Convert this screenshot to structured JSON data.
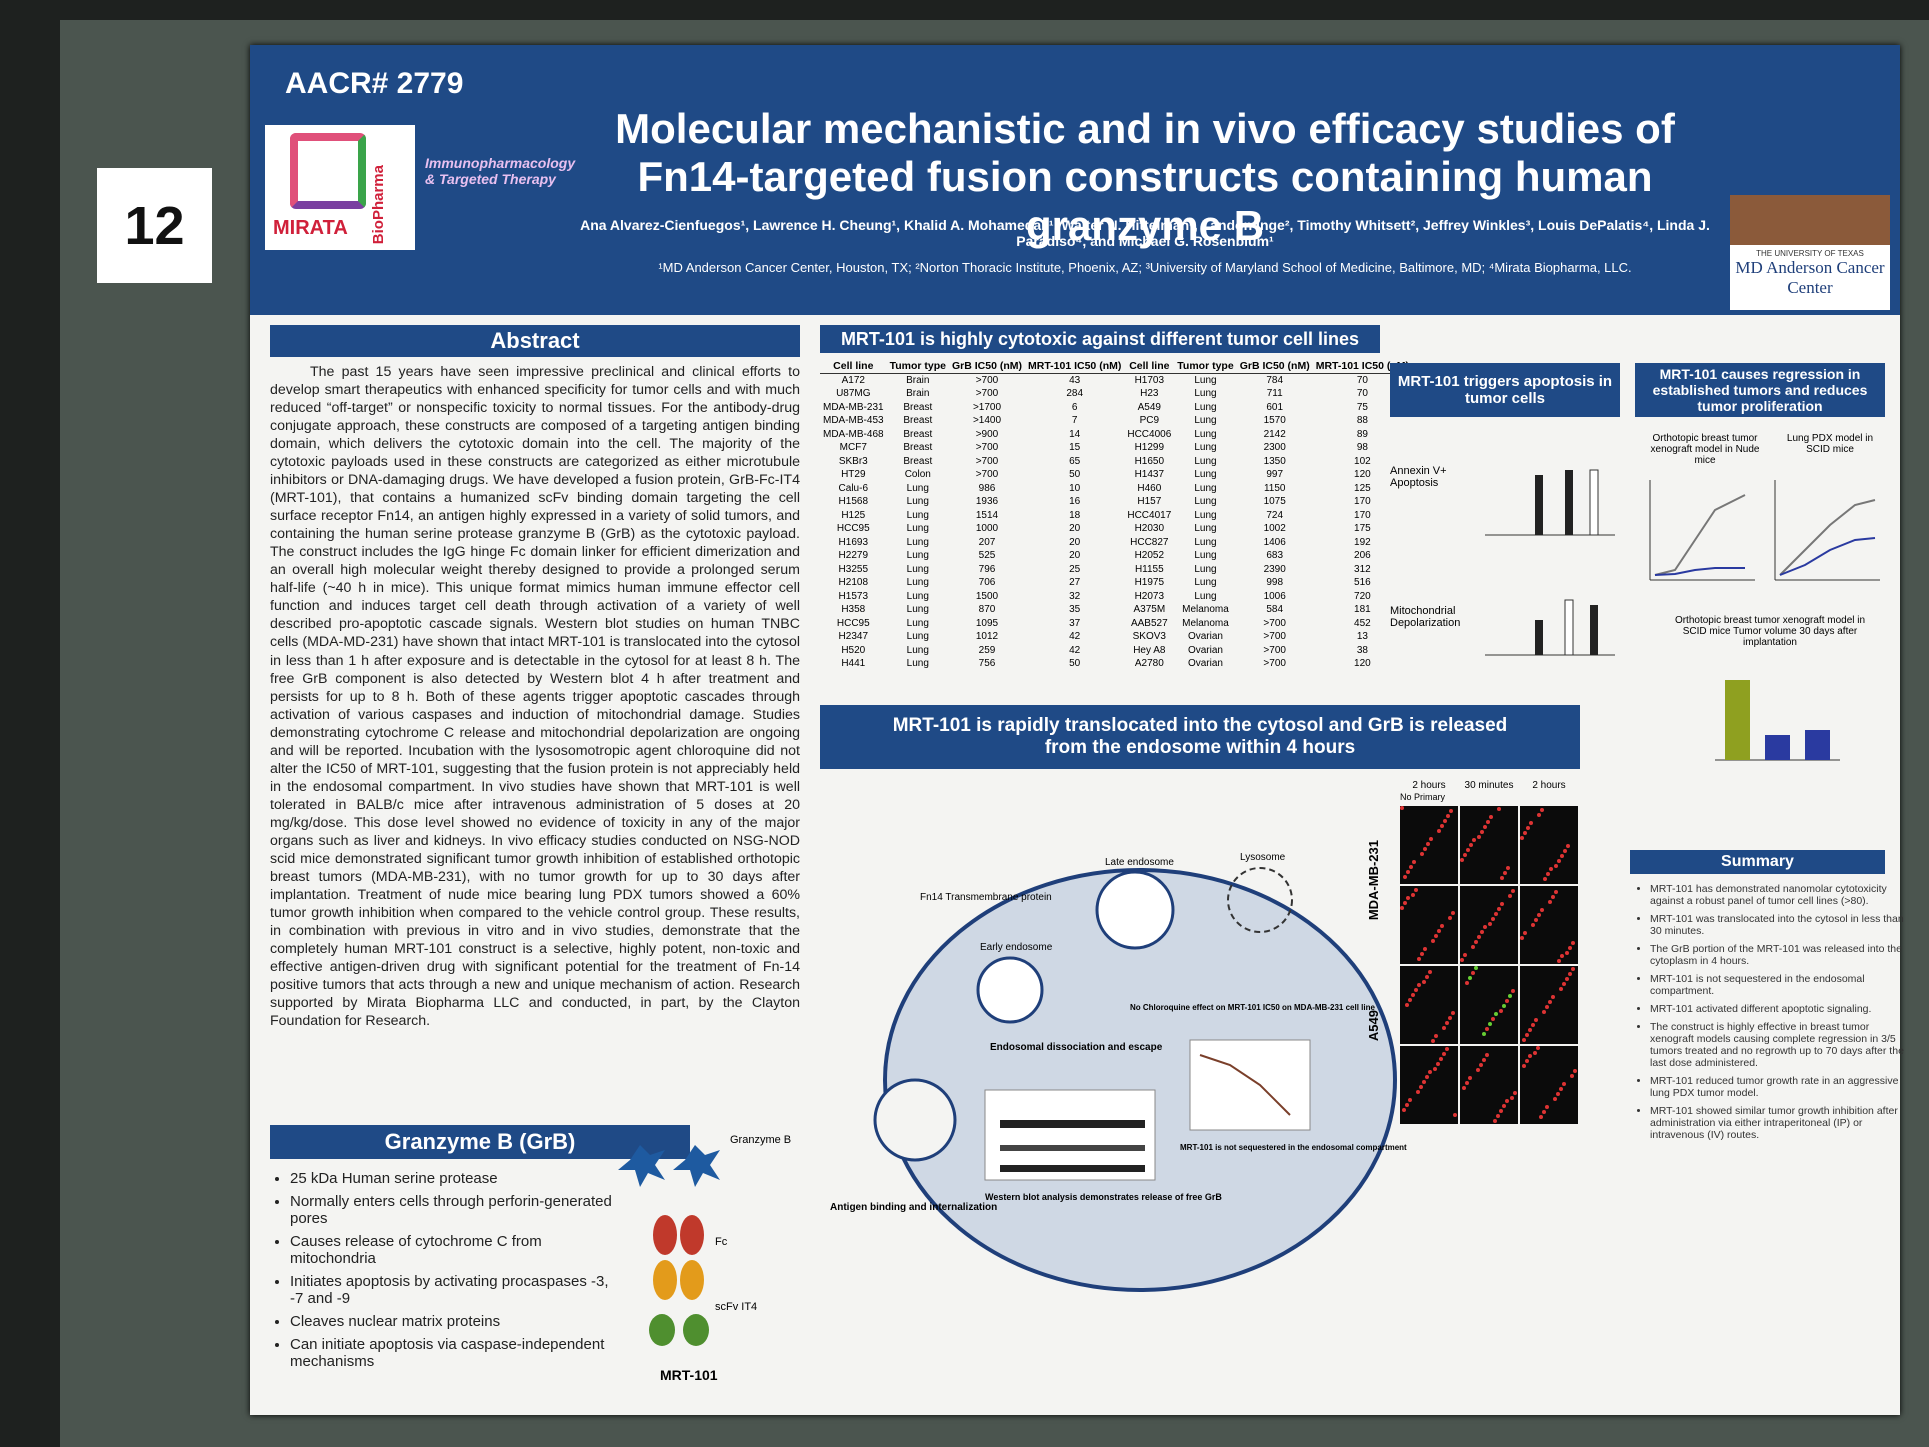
{
  "board": {
    "number": "12"
  },
  "header": {
    "conference": "AACR# 2779",
    "logo_company": "MIRATA",
    "logo_company_sub": "BioPharma",
    "logo_journal": "Immunopharmacology & Targeted Therapy",
    "title": "Molecular mechanistic and in vivo efficacy studies of Fn14-targeted fusion constructs containing human granzyme B",
    "authors": "Ana Alvarez-Cienfuegos¹, Lawrence H. Cheung¹, Khalid A. Mohamedali¹, Walter N. Hittelman¹, Landon Inge², Timothy Whitsett², Jeffrey Winkles³, Louis DePalatis⁴, Linda J. Paradiso⁴, and Michael G. Rosenblum¹",
    "affiliations": "¹MD Anderson Cancer Center, Houston, TX; ²Norton Thoracic Institute, Phoenix, AZ; ³University of Maryland School of Medicine, Baltimore, MD; ⁴Mirata Biopharma, LLC.",
    "logo_institution_top": "THE UNIVERSITY OF TEXAS",
    "logo_institution": "MD Anderson Cancer Center"
  },
  "abstract": {
    "title": "Abstract",
    "text": "The past 15 years have seen impressive preclinical and clinical efforts to develop smart therapeutics with enhanced specificity for tumor cells and with much reduced “off-target” or nonspecific toxicity to normal tissues. For the antibody-drug conjugate approach, these constructs are composed of a targeting antigen binding domain, which delivers the cytotoxic domain into the cell. The majority of the cytotoxic payloads used in these constructs are categorized as either microtubule inhibitors or DNA-damaging drugs. We have developed a fusion protein, GrB-Fc-IT4 (MRT-101), that contains a humanized scFv binding domain targeting the cell surface receptor Fn14, an antigen highly expressed in a variety of solid tumors, and containing the human serine protease granzyme B (GrB) as the cytotoxic payload. The construct includes the IgG hinge Fc domain linker for efficient dimerization and an overall high molecular weight thereby designed to provide a prolonged serum half-life (~40 h in mice). This unique format mimics human immune effector cell function and induces target cell death through activation of a variety of well described pro-apoptotic cascade signals. Western blot studies on human TNBC cells (MDA-MD-231) have shown that intact MRT-101 is translocated into the cytosol in less than 1 h after exposure and is detectable in the cytosol for at least 8 h. The free GrB component is also detected by Western blot 4 h after treatment and persists for up to 8 h. Both of these agents trigger apoptotic cascades through activation of various caspases and induction of mitochondrial damage. Studies demonstrating cytochrome C release and mitochondrial depolarization are ongoing and will be reported. Incubation with the lysosomotropic agent chloroquine did not alter the IC50 of MRT-101, suggesting that the fusion protein is not appreciably held in the endosomal compartment. In vivo studies have shown that MRT-101 is well tolerated in BALB/c mice after intravenous administration of 5 doses at 20 mg/kg/dose. This dose level showed no evidence of toxicity in any of the major organs such as liver and kidneys. In vivo efficacy studies conducted on NSG-NOD scid mice demonstrated significant tumor growth inhibition of established orthotopic breast tumors (MDA-MB-231), with no tumor growth for up to 30 days after implantation. Treatment of nude mice bearing lung PDX tumors showed a 60% tumor growth inhibition when compared to the vehicle control group. These results, in combination with previous in vitro and in vivo studies, demonstrate that the completely human MRT-101 construct is a selective, highly potent, non-toxic and effective antigen-driven drug with significant potential for the treatment of Fn-14 positive tumors that acts through a new and unique mechanism of action. Research supported by Mirata Biopharma LLC and conducted, in part, by the Clayton Foundation for Research."
  },
  "granzyme": {
    "title": "Granzyme B (GrB)",
    "bullets": [
      "25 kDa Human serine protease",
      "Normally enters cells through perforin-generated pores",
      "Causes release of cytochrome C from mitochondria",
      "Initiates apoptosis by activating procaspases -3, -7 and -9",
      "Cleaves nuclear matrix proteins",
      "Can initiate apoptosis via caspase-independent mechanisms"
    ],
    "diagram_labels": [
      "Granzyme B",
      "Fc",
      "scFv IT4",
      "MRT-101"
    ]
  },
  "table": {
    "title": "MRT-101 is highly cytotoxic against different tumor cell lines",
    "header": [
      "Cell line",
      "Tumor type",
      "GrB IC50 (nM)",
      "MRT-101 IC50 (nM)",
      "Cell line",
      "Tumor type",
      "GrB IC50 (nM)",
      "MRT-101 IC50 (nM)"
    ],
    "rows": [
      [
        "A172",
        "Brain",
        ">700",
        "43",
        "H1703",
        "Lung",
        "784",
        "70"
      ],
      [
        "U87MG",
        "Brain",
        ">700",
        "284",
        "H23",
        "Lung",
        "711",
        "70"
      ],
      [
        "MDA-MB-231",
        "Breast",
        ">1700",
        "6",
        "A549",
        "Lung",
        "601",
        "75"
      ],
      [
        "MDA-MB-453",
        "Breast",
        ">1400",
        "7",
        "PC9",
        "Lung",
        "1570",
        "88"
      ],
      [
        "MDA-MB-468",
        "Breast",
        ">900",
        "14",
        "HCC4006",
        "Lung",
        "2142",
        "89"
      ],
      [
        "MCF7",
        "Breast",
        ">700",
        "15",
        "H1299",
        "Lung",
        "2300",
        "98"
      ],
      [
        "SKBr3",
        "Breast",
        ">700",
        "65",
        "H1650",
        "Lung",
        "1350",
        "102"
      ],
      [
        "HT29",
        "Colon",
        ">700",
        "50",
        "H1437",
        "Lung",
        "997",
        "120"
      ],
      [
        "Calu-6",
        "Lung",
        "986",
        "10",
        "H460",
        "Lung",
        "1150",
        "125"
      ],
      [
        "H1568",
        "Lung",
        "1936",
        "16",
        "H157",
        "Lung",
        "1075",
        "170"
      ],
      [
        "H125",
        "Lung",
        "1514",
        "18",
        "HCC4017",
        "Lung",
        "724",
        "170"
      ],
      [
        "HCC95",
        "Lung",
        "1000",
        "20",
        "H2030",
        "Lung",
        "1002",
        "175"
      ],
      [
        "H1693",
        "Lung",
        "207",
        "20",
        "HCC827",
        "Lung",
        "1406",
        "192"
      ],
      [
        "H2279",
        "Lung",
        "525",
        "20",
        "H2052",
        "Lung",
        "683",
        "206"
      ],
      [
        "H3255",
        "Lung",
        "796",
        "25",
        "H1155",
        "Lung",
        "2390",
        "312"
      ],
      [
        "H2108",
        "Lung",
        "706",
        "27",
        "H1975",
        "Lung",
        "998",
        "516"
      ],
      [
        "H1573",
        "Lung",
        "1500",
        "32",
        "H2073",
        "Lung",
        "1006",
        "720"
      ],
      [
        "H358",
        "Lung",
        "870",
        "35",
        "A375M",
        "Melanoma",
        "584",
        "181"
      ],
      [
        "HCC95",
        "Lung",
        "1095",
        "37",
        "AAB527",
        "Melanoma",
        ">700",
        "452"
      ],
      [
        "H2347",
        "Lung",
        "1012",
        "42",
        "SKOV3",
        "Ovarian",
        ">700",
        "13"
      ],
      [
        "H520",
        "Lung",
        "259",
        "42",
        "Hey A8",
        "Ovarian",
        ">700",
        "38"
      ],
      [
        "H441",
        "Lung",
        "756",
        "50",
        "A2780",
        "Ovarian",
        ">700",
        "120"
      ]
    ]
  },
  "translocation": {
    "title": "MRT-101 is rapidly translocated into the cytosol and GrB is released from the endosome within 4 hours",
    "diagram_labels": [
      "Fn14 Transmembrane protein",
      "Early endosome",
      "Late endosome",
      "Lysosome",
      "Endosomal dissociation and escape",
      "Antigen binding and internalization",
      "No Chloroquine effect on MRT-101 IC50 on MDA-MB-231 cell line",
      "Western blot analysis demonstrates release of free GrB",
      "MRT-101 is not sequestered in the endosomal compartment"
    ],
    "micrograph_columns": [
      "2 hours",
      "30 minutes",
      "2 hours"
    ],
    "micrograph_rows": [
      "MDA-MB-231",
      "A549"
    ],
    "micrograph_control": "No Primary"
  },
  "apoptosis": {
    "title": "MRT-101 triggers apoptosis in tumor cells",
    "labels": [
      "Annexin V+ Apoptosis",
      "Mitochondrial Depolarization"
    ]
  },
  "regression": {
    "title": "MRT-101 causes regression in established tumors and reduces tumor proliferation",
    "labels": [
      "Orthotopic breast tumor xenograft model in Nude mice",
      "Lung PDX model in SCID mice",
      "Orthotopic breast tumor xenograft model in SCID mice Tumor volume 30 days after implantation"
    ]
  },
  "summary": {
    "title": "Summary",
    "bullets": [
      "MRT-101 has demonstrated nanomolar cytotoxicity against a robust panel of tumor cell lines (>80).",
      "MRT-101 was translocated into the cytosol in less than 30 minutes.",
      "The GrB portion of the MRT-101 was released into the cytoplasm in 4 hours.",
      "MRT-101 is not sequestered in the endosomal compartment.",
      "MRT-101 activated different apoptotic signaling.",
      "The construct is highly effective in breast tumor xenograft models causing complete regression in 3/5 tumors treated and no regrowth up to 70 days after the last dose administered.",
      "MRT-101 reduced tumor growth rate in an aggressive lung PDX tumor model.",
      "MRT-101 showed similar tumor growth inhibition after administration via either intraperitoneal (IP) or intravenous (IV) routes."
    ]
  }
}
